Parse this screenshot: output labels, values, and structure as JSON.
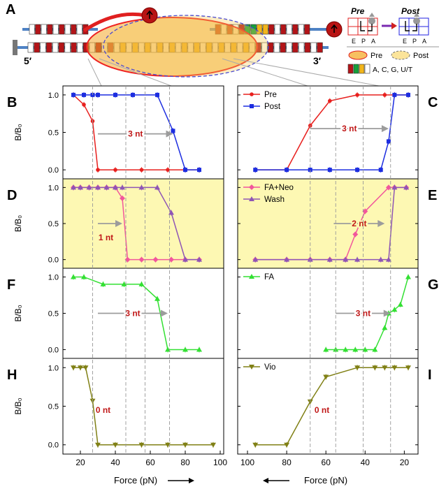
{
  "panel_letters": {
    "A": "A",
    "B": "B",
    "C": "C",
    "D": "D",
    "E": "E",
    "F": "F",
    "G": "G",
    "H": "H",
    "I": "I"
  },
  "ends": {
    "five": "5′",
    "three": "3′"
  },
  "legend_a": {
    "pre_title": "Pre",
    "post_title": "Post",
    "sites": [
      "E",
      "P",
      "A"
    ],
    "oval_pre": "Pre",
    "oval_post": "Post",
    "bases": "A, C, G, U/T"
  },
  "colors": {
    "pre": "#e8201e",
    "post": "#1c2de0",
    "fa_neo": "#f2569c",
    "wash": "#8e55b5",
    "fa": "#33e033",
    "vio": "#808015",
    "yellow_bg": "#fdf8b3",
    "arrow": "#9c9c9c",
    "nt_label": "#c01818",
    "base_a": "#b31418",
    "base_c": "#15a03a",
    "base_g": "#f2b51a",
    "base_u": "#ffffff"
  },
  "axes": {
    "ylabel": "B/B₀",
    "yticks": [
      "0.0",
      "0.5",
      "1.0"
    ],
    "xlabel_left": "Force (pN)",
    "xlabel_right": "Force (pN)",
    "xticks_left": [
      "20",
      "40",
      "60",
      "80",
      "100"
    ],
    "xticks_right": [
      "100",
      "80",
      "60",
      "40",
      "20"
    ],
    "left_xlim": [
      10,
      102
    ],
    "right_xlim": [
      105,
      13
    ],
    "ylim": [
      -0.12,
      1.12
    ]
  },
  "chart_data": [
    {
      "panel": "B",
      "type": "line",
      "direction": "left",
      "series": [
        {
          "name": "Pre",
          "color": "#e8201e",
          "marker": "circle",
          "x": [
            16,
            22,
            27,
            30,
            40,
            55,
            70,
            80,
            88
          ],
          "y": [
            1.0,
            0.87,
            0.65,
            0.0,
            0.0,
            0.0,
            0.0,
            0.0,
            0.0
          ]
        },
        {
          "name": "Post",
          "color": "#1c2de0",
          "marker": "square",
          "x": [
            16,
            22,
            27,
            30,
            40,
            50,
            64,
            73,
            80,
            88
          ],
          "y": [
            1.0,
            1.0,
            1.0,
            1.0,
            1.0,
            1.0,
            1.0,
            0.52,
            0.0,
            0.0
          ]
        }
      ],
      "annotation": "3 nt",
      "arrow_x": [
        30,
        73
      ],
      "arrow_y": 0.48
    },
    {
      "panel": "C",
      "type": "line",
      "direction": "right",
      "series": [
        {
          "name": "Pre",
          "color": "#e8201e",
          "marker": "circle",
          "x": [
            96,
            80,
            68,
            58,
            44,
            30,
            25,
            18
          ],
          "y": [
            0.0,
            0.0,
            0.59,
            0.92,
            1.0,
            1.0,
            1.0,
            1.0
          ]
        },
        {
          "name": "Post",
          "color": "#1c2de0",
          "marker": "square",
          "x": [
            96,
            80,
            68,
            58,
            44,
            32,
            28,
            25,
            18
          ],
          "y": [
            0.0,
            0.0,
            0.0,
            0.0,
            0.0,
            0.0,
            0.38,
            1.0,
            1.0
          ]
        }
      ],
      "annotation": "3 nt",
      "arrow_x": [
        68,
        28
      ],
      "arrow_y": 0.55
    },
    {
      "panel": "D",
      "type": "line",
      "direction": "left",
      "highlight": true,
      "series": [
        {
          "name": "FA+Neo",
          "color": "#f2569c",
          "marker": "diamond",
          "x": [
            16,
            20,
            25,
            30,
            35,
            40,
            44,
            47,
            55,
            63,
            72,
            80,
            88
          ],
          "y": [
            1.0,
            1.0,
            1.0,
            1.0,
            1.0,
            1.0,
            0.85,
            0.0,
            0.0,
            0.0,
            0.0,
            0.0,
            0.0
          ]
        },
        {
          "name": "Wash",
          "color": "#8e55b5",
          "marker": "triangle",
          "x": [
            16,
            20,
            25,
            30,
            35,
            40,
            44,
            55,
            64,
            72,
            80,
            88
          ],
          "y": [
            1.0,
            1.0,
            1.0,
            1.0,
            1.0,
            1.0,
            1.0,
            1.0,
            1.0,
            0.65,
            0.0,
            0.0
          ]
        }
      ],
      "annotation": "1 nt",
      "arrow_x": [
        30,
        44
      ],
      "arrow_y": 0.5
    },
    {
      "panel": "E",
      "type": "line",
      "direction": "right",
      "highlight": true,
      "series": [
        {
          "name": "FA+Neo",
          "color": "#f2569c",
          "marker": "diamond",
          "x": [
            96,
            80,
            68,
            58,
            50,
            45,
            40,
            28,
            25,
            19
          ],
          "y": [
            0.0,
            0.0,
            0.0,
            0.0,
            0.0,
            0.35,
            0.67,
            1.0,
            1.0,
            1.0
          ]
        },
        {
          "name": "Wash",
          "color": "#8e55b5",
          "marker": "triangle",
          "x": [
            96,
            80,
            68,
            58,
            50,
            44,
            32,
            28,
            25,
            19
          ],
          "y": [
            0.0,
            0.0,
            0.0,
            0.0,
            0.0,
            0.0,
            0.0,
            0.0,
            1.0,
            1.0
          ]
        }
      ],
      "annotation": "2 nt",
      "arrow_x": [
        56,
        30
      ],
      "arrow_y": 0.5
    },
    {
      "panel": "F",
      "type": "line",
      "direction": "left",
      "series": [
        {
          "name": "FA",
          "color": "#33e033",
          "marker": "triangle",
          "x": [
            16,
            22,
            33,
            45,
            55,
            64,
            70,
            80,
            88
          ],
          "y": [
            1.0,
            1.0,
            0.9,
            0.9,
            0.9,
            0.7,
            0.0,
            0.0,
            0.0
          ]
        }
      ],
      "annotation": "3 nt",
      "arrow_x": [
        30,
        70
      ],
      "arrow_y": 0.5
    },
    {
      "panel": "G",
      "type": "line",
      "direction": "right",
      "series": [
        {
          "name": "FA",
          "color": "#33e033",
          "marker": "triangle",
          "x": [
            60,
            55,
            50,
            45,
            40,
            35,
            30,
            28,
            25,
            22,
            18
          ],
          "y": [
            0.0,
            0.0,
            0.0,
            0.0,
            0.0,
            0.0,
            0.3,
            0.5,
            0.55,
            0.62,
            1.0
          ]
        }
      ],
      "annotation": "3 nt",
      "arrow_x": [
        55,
        27
      ],
      "arrow_y": 0.5
    },
    {
      "panel": "H",
      "type": "line",
      "direction": "left",
      "series": [
        {
          "name": "Vio",
          "color": "#808015",
          "marker": "triangle-down",
          "x": [
            16,
            20,
            23,
            27,
            30,
            40,
            55,
            70,
            80,
            96
          ],
          "y": [
            1.0,
            1.0,
            1.0,
            0.57,
            0.0,
            0.0,
            0.0,
            0.0,
            0.0,
            0.0
          ]
        }
      ],
      "annotation": "0 nt",
      "arrow_x": [],
      "arrow_y": 0.45
    },
    {
      "panel": "I",
      "type": "line",
      "direction": "right",
      "series": [
        {
          "name": "Vio",
          "color": "#808015",
          "marker": "triangle-down",
          "x": [
            96,
            80,
            68,
            60,
            44,
            35,
            30,
            25,
            18
          ],
          "y": [
            0.0,
            0.0,
            0.56,
            0.88,
            1.0,
            1.0,
            1.0,
            1.0,
            1.0
          ]
        }
      ],
      "annotation": "0 nt",
      "arrow_x": [],
      "arrow_y": 0.45
    }
  ]
}
